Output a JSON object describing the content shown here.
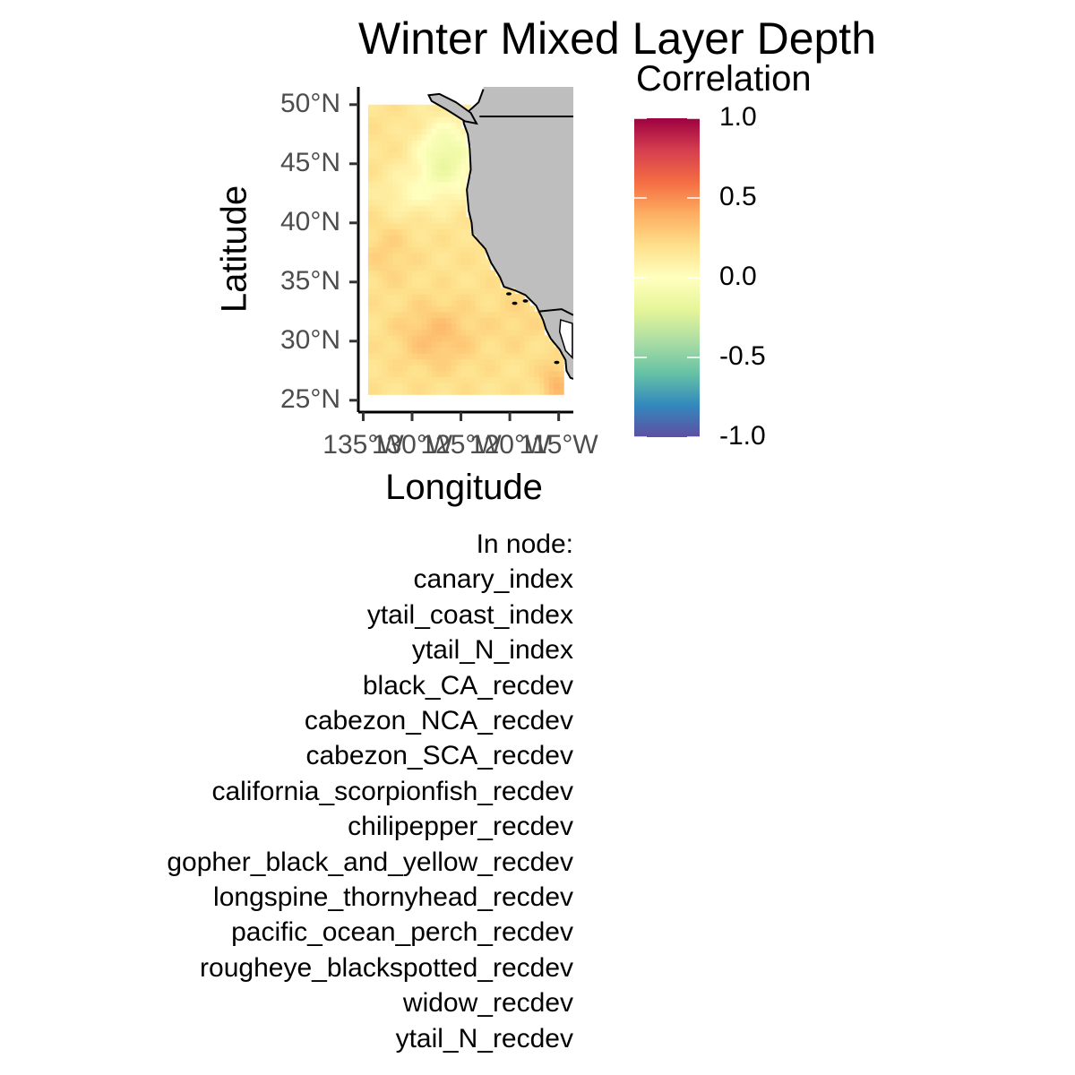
{
  "chart_data": {
    "type": "heatmap",
    "title": "Winter Mixed Layer Depth",
    "xlabel": "Longitude",
    "ylabel": "Latitude",
    "legend_title": "Correlation",
    "x_ticks": [
      "135°W",
      "130°W",
      "125°W",
      "120°W",
      "115°W"
    ],
    "y_ticks": [
      "25°N",
      "30°N",
      "35°N",
      "40°N",
      "45°N",
      "50°N"
    ],
    "x_range": [
      -135.5,
      -113.5
    ],
    "y_range": [
      24,
      51.5
    ],
    "data_extent": {
      "lon": [
        -134.5,
        -114.5
      ],
      "lat": [
        25.5,
        50
      ]
    },
    "color_scale": {
      "range": [
        -1,
        1
      ],
      "ticks": [
        "1.0",
        "0.5",
        "0.0",
        "-0.5",
        "-1.0"
      ],
      "colors": [
        "#5e4fa2",
        "#3288bd",
        "#66c2a5",
        "#abdda4",
        "#e6f598",
        "#ffffbf",
        "#fee08b",
        "#fdae61",
        "#f46d43",
        "#d53e4f",
        "#9e0142"
      ]
    },
    "land_color": "#bebebe",
    "correlation_pattern": "mostly weak positive correlation (about 0.1 to 0.35) with a slightly negative patch (about -0.15) near 125-128°W, 43-47°N and strongest positive values (about 0.35) near 127°W, 30°N and 115°W, 26°N"
  },
  "node_list": {
    "header": "In node:",
    "items": [
      "canary_index",
      "ytail_coast_index",
      "ytail_N_index",
      "black_CA_recdev",
      "cabezon_NCA_recdev",
      "cabezon_SCA_recdev",
      "california_scorpionfish_recdev",
      "chilipepper_recdev",
      "gopher_black_and_yellow_recdev",
      "longspine_thornyhead_recdev",
      "pacific_ocean_perch_recdev",
      "rougheye_blackspotted_recdev",
      "widow_recdev",
      "ytail_N_recdev"
    ]
  }
}
